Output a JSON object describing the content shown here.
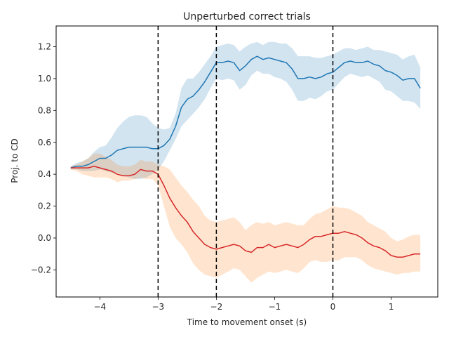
{
  "chart_data": {
    "type": "line",
    "title": "Unperturbed correct trials",
    "xlabel": "Time to movement onset (s)",
    "ylabel": "Proj. to CD",
    "xlim": [
      -4.75,
      1.8
    ],
    "ylim": [
      -0.37,
      1.33
    ],
    "xticks": [
      -4,
      -3,
      -2,
      -1,
      0,
      1
    ],
    "xtick_labels": [
      "−4",
      "−3",
      "−2",
      "−1",
      "0",
      "1"
    ],
    "yticks": [
      -0.2,
      0.0,
      0.2,
      0.4,
      0.6,
      0.8,
      1.0,
      1.2
    ],
    "ytick_labels": [
      "−0.2",
      "0.0",
      "0.2",
      "0.4",
      "0.6",
      "0.8",
      "1.0",
      "1.2"
    ],
    "grid": false,
    "legend": "none",
    "vlines": [
      -3,
      -2,
      0
    ],
    "x": [
      -4.5,
      -4.4,
      -4.3,
      -4.2,
      -4.1,
      -4.0,
      -3.9,
      -3.8,
      -3.7,
      -3.6,
      -3.5,
      -3.4,
      -3.3,
      -3.2,
      -3.1,
      -3.0,
      -2.9,
      -2.8,
      -2.7,
      -2.6,
      -2.5,
      -2.4,
      -2.3,
      -2.2,
      -2.1,
      -2.0,
      -1.9,
      -1.8,
      -1.7,
      -1.6,
      -1.5,
      -1.4,
      -1.3,
      -1.2,
      -1.1,
      -1.0,
      -0.9,
      -0.8,
      -0.7,
      -0.6,
      -0.5,
      -0.4,
      -0.3,
      -0.2,
      -0.1,
      0.0,
      0.1,
      0.2,
      0.3,
      0.4,
      0.5,
      0.6,
      0.7,
      0.8,
      0.9,
      1.0,
      1.1,
      1.2,
      1.3,
      1.4,
      1.5
    ],
    "series": [
      {
        "color": "#1f77b4",
        "band_color": "#1f77b4",
        "band_opacity": 0.2,
        "values": [
          0.44,
          0.45,
          0.45,
          0.46,
          0.48,
          0.5,
          0.5,
          0.52,
          0.55,
          0.56,
          0.57,
          0.57,
          0.57,
          0.57,
          0.56,
          0.56,
          0.58,
          0.62,
          0.7,
          0.82,
          0.87,
          0.89,
          0.93,
          0.98,
          1.04,
          1.1,
          1.1,
          1.11,
          1.1,
          1.05,
          1.08,
          1.12,
          1.14,
          1.12,
          1.13,
          1.12,
          1.11,
          1.1,
          1.06,
          1.0,
          1.0,
          1.01,
          1.0,
          1.01,
          1.03,
          1.04,
          1.07,
          1.1,
          1.11,
          1.1,
          1.1,
          1.11,
          1.09,
          1.08,
          1.05,
          1.04,
          1.02,
          0.99,
          1.0,
          1.0,
          0.94
        ],
        "lower": [
          0.43,
          0.43,
          0.42,
          0.42,
          0.42,
          0.43,
          0.42,
          0.41,
          0.41,
          0.39,
          0.38,
          0.37,
          0.37,
          0.38,
          0.4,
          0.43,
          0.48,
          0.55,
          0.62,
          0.7,
          0.74,
          0.78,
          0.82,
          0.87,
          0.94,
          1.0,
          0.99,
          1.0,
          0.99,
          0.93,
          0.96,
          1.02,
          1.05,
          1.03,
          1.03,
          1.01,
          1.0,
          0.98,
          0.93,
          0.86,
          0.86,
          0.88,
          0.87,
          0.89,
          0.92,
          0.93,
          0.97,
          1.01,
          1.03,
          1.02,
          1.01,
          1.02,
          1.0,
          0.98,
          0.93,
          0.92,
          0.89,
          0.86,
          0.86,
          0.85,
          0.81
        ],
        "upper": [
          0.45,
          0.47,
          0.48,
          0.5,
          0.54,
          0.57,
          0.58,
          0.63,
          0.69,
          0.73,
          0.76,
          0.77,
          0.77,
          0.76,
          0.72,
          0.69,
          0.68,
          0.69,
          0.78,
          0.94,
          1.0,
          1.0,
          1.04,
          1.09,
          1.14,
          1.2,
          1.21,
          1.22,
          1.21,
          1.17,
          1.2,
          1.22,
          1.23,
          1.21,
          1.23,
          1.23,
          1.22,
          1.22,
          1.19,
          1.14,
          1.14,
          1.14,
          1.13,
          1.13,
          1.14,
          1.15,
          1.17,
          1.19,
          1.19,
          1.18,
          1.19,
          1.2,
          1.18,
          1.18,
          1.17,
          1.16,
          1.15,
          1.12,
          1.14,
          1.15,
          1.07
        ]
      },
      {
        "color": "#d62728",
        "band_color": "#ff7f0e",
        "band_opacity": 0.2,
        "values": [
          0.44,
          0.44,
          0.44,
          0.44,
          0.45,
          0.44,
          0.43,
          0.42,
          0.4,
          0.39,
          0.39,
          0.4,
          0.43,
          0.42,
          0.42,
          0.4,
          0.33,
          0.25,
          0.19,
          0.14,
          0.1,
          0.04,
          0.0,
          -0.04,
          -0.06,
          -0.07,
          -0.06,
          -0.05,
          -0.04,
          -0.05,
          -0.08,
          -0.09,
          -0.06,
          -0.06,
          -0.04,
          -0.06,
          -0.05,
          -0.04,
          -0.05,
          -0.06,
          -0.04,
          -0.01,
          0.01,
          0.01,
          0.02,
          0.03,
          0.03,
          0.04,
          0.03,
          0.02,
          0.0,
          -0.03,
          -0.05,
          -0.06,
          -0.08,
          -0.11,
          -0.12,
          -0.12,
          -0.11,
          -0.1,
          -0.1
        ],
        "lower": [
          0.43,
          0.42,
          0.4,
          0.39,
          0.38,
          0.38,
          0.38,
          0.37,
          0.35,
          0.36,
          0.36,
          0.37,
          0.38,
          0.37,
          0.37,
          0.33,
          0.2,
          0.07,
          0.0,
          -0.04,
          -0.09,
          -0.16,
          -0.2,
          -0.23,
          -0.24,
          -0.25,
          -0.23,
          -0.21,
          -0.19,
          -0.2,
          -0.24,
          -0.28,
          -0.25,
          -0.23,
          -0.21,
          -0.22,
          -0.21,
          -0.2,
          -0.21,
          -0.22,
          -0.19,
          -0.15,
          -0.14,
          -0.15,
          -0.15,
          -0.14,
          -0.14,
          -0.12,
          -0.12,
          -0.12,
          -0.14,
          -0.17,
          -0.19,
          -0.2,
          -0.21,
          -0.22,
          -0.23,
          -0.22,
          -0.22,
          -0.21,
          -0.21
        ],
        "upper": [
          0.45,
          0.46,
          0.48,
          0.5,
          0.53,
          0.53,
          0.51,
          0.49,
          0.46,
          0.45,
          0.45,
          0.46,
          0.49,
          0.48,
          0.48,
          0.46,
          0.45,
          0.43,
          0.38,
          0.33,
          0.29,
          0.24,
          0.2,
          0.14,
          0.11,
          0.1,
          0.11,
          0.12,
          0.13,
          0.1,
          0.05,
          0.08,
          0.1,
          0.09,
          0.1,
          0.08,
          0.09,
          0.1,
          0.09,
          0.08,
          0.08,
          0.12,
          0.15,
          0.16,
          0.18,
          0.2,
          0.19,
          0.19,
          0.18,
          0.16,
          0.14,
          0.1,
          0.08,
          0.06,
          0.04,
          0.0,
          -0.02,
          -0.01,
          0.01,
          0.02,
          0.02
        ]
      }
    ]
  }
}
